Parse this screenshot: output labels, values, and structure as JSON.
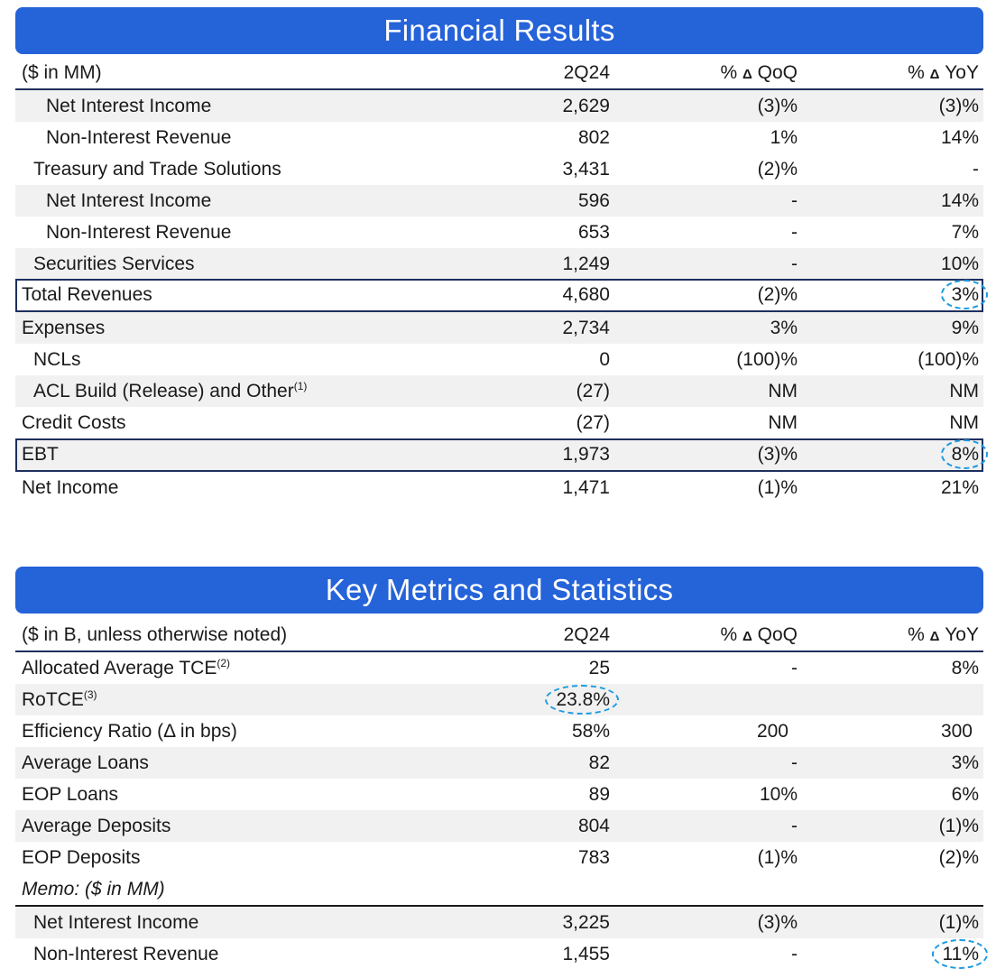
{
  "financial": {
    "title": "Financial Results",
    "header": {
      "label": "($ in MM)",
      "col1": "2Q24",
      "col2_pre": "% ",
      "col2_delta": "Δ",
      "col2_post": " QoQ",
      "col3_pre": "% ",
      "col3_delta": "Δ",
      "col3_post": " YoY"
    },
    "rows": [
      {
        "label": "Net Interest Income",
        "v1": "2,629",
        "v2": "(3)%",
        "v3": "(3)%"
      },
      {
        "label": "Non-Interest Revenue",
        "v1": "802",
        "v2": "1%",
        "v3": "14%"
      },
      {
        "label": "Treasury and Trade Solutions",
        "v1": "3,431",
        "v2": "(2)%",
        "v3": "-"
      },
      {
        "label": "Net Interest Income",
        "v1": "596",
        "v2": "-",
        "v3": "14%"
      },
      {
        "label": "Non-Interest Revenue",
        "v1": "653",
        "v2": "-",
        "v3": "7%"
      },
      {
        "label": "Securities Services",
        "v1": "1,249",
        "v2": "-",
        "v3": "10%"
      },
      {
        "label": "Total Revenues",
        "v1": "4,680",
        "v2": "(2)%",
        "v3": "3%"
      },
      {
        "label": "Expenses",
        "v1": "2,734",
        "v2": "3%",
        "v3": "9%"
      },
      {
        "label": "NCLs",
        "v1": "0",
        "v2": "(100)%",
        "v3": "(100)%"
      },
      {
        "label": "ACL Build (Release) and Other",
        "sup": "(1)",
        "v1": "(27)",
        "v2": "NM",
        "v3": "NM"
      },
      {
        "label": "Credit Costs",
        "v1": "(27)",
        "v2": "NM",
        "v3": "NM"
      },
      {
        "label": "EBT",
        "v1": "1,973",
        "v2": "(3)%",
        "v3": "8%"
      },
      {
        "label": "Net Income",
        "v1": "1,471",
        "v2": "(1)%",
        "v3": "21%"
      }
    ]
  },
  "metrics": {
    "title": "Key Metrics and Statistics",
    "header": {
      "label": "($ in B, unless otherwise noted)",
      "col1": "2Q24",
      "col2_pre": "% ",
      "col2_delta": "Δ",
      "col2_post": " QoQ",
      "col3_pre": "% ",
      "col3_delta": "Δ",
      "col3_post": " YoY"
    },
    "rows": [
      {
        "label": "Allocated Average TCE",
        "sup": "(2)",
        "v1": "25",
        "v2": "-",
        "v3": "8%"
      },
      {
        "label": "RoTCE",
        "sup": "(3)",
        "v1": "23.8%",
        "v2": "",
        "v3": ""
      },
      {
        "label": "Efficiency Ratio (Δ in bps)",
        "v1": "58%",
        "v2": "200",
        "v3": "300"
      },
      {
        "label": "Average Loans",
        "v1": "82",
        "v2": "-",
        "v3": "3%"
      },
      {
        "label": "EOP Loans",
        "v1": "89",
        "v2": "10%",
        "v3": "6%"
      },
      {
        "label": "Average Deposits",
        "v1": "804",
        "v2": "-",
        "v3": "(1)%"
      },
      {
        "label": "EOP Deposits",
        "v1": "783",
        "v2": "(1)%",
        "v3": "(2)%"
      },
      {
        "label": "Memo: ($ in MM)"
      },
      {
        "label": "Net Interest Income",
        "v1": "3,225",
        "v2": "(3)%",
        "v3": "(1)%"
      },
      {
        "label": "Non-Interest Revenue",
        "v1": "1,455",
        "v2": "-",
        "v3": "11%"
      }
    ]
  },
  "colors": {
    "banner": "#2563d9",
    "rule": "#1e2f5e",
    "highlight": "#1e9be0",
    "shade": "#f1f1f1"
  }
}
